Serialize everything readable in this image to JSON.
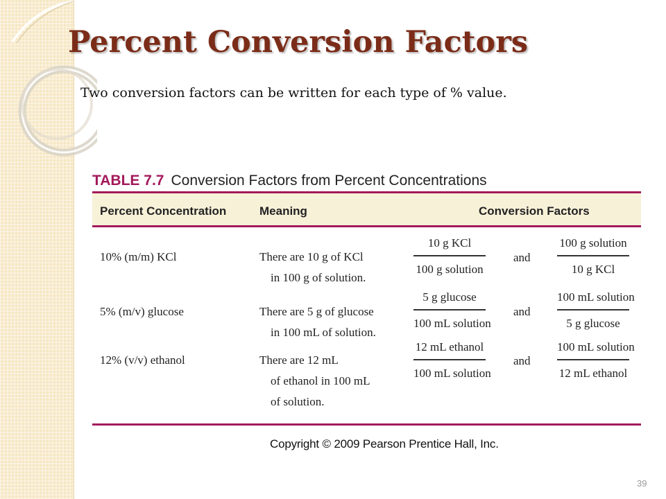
{
  "title": "Percent Conversion Factors",
  "subtitle": "Two conversion factors can be written for each type of % value.",
  "table": {
    "number": "TABLE 7.7",
    "caption": "Conversion Factors from Percent Concentrations",
    "headers": {
      "percent": "Percent Concentration",
      "meaning": "Meaning",
      "factors": "Conversion Factors"
    },
    "rows": [
      {
        "percent": "10% (m/m) KCl",
        "meaning": [
          "There are 10 g of KCl",
          "in 100 g of solution."
        ],
        "factor1": {
          "num": "10 g KCl",
          "den": "100 g solution"
        },
        "conj": "and",
        "factor2": {
          "num": "100 g solution",
          "den": "10 g KCl"
        }
      },
      {
        "percent": "5% (m/v) glucose",
        "meaning": [
          "There are 5 g of glucose",
          "in 100 mL of solution."
        ],
        "factor1": {
          "num": "5 g glucose",
          "den": "100 mL solution"
        },
        "conj": "and",
        "factor2": {
          "num": "100 mL solution",
          "den": "5 g glucose"
        }
      },
      {
        "percent": "12% (v/v) ethanol",
        "meaning": [
          "There are 12 mL",
          "of ethanol in 100 mL",
          "of solution."
        ],
        "factor1": {
          "num": "12 mL ethanol",
          "den": "100 mL solution"
        },
        "conj": "and",
        "factor2": {
          "num": "100 mL solution",
          "den": "12 mL ethanol"
        }
      }
    ]
  },
  "copyright": "Copyright © 2009 Pearson Prentice Hall, Inc.",
  "page_number": "39",
  "colors": {
    "title": "#7b2c18",
    "table_accent": "#a3195b",
    "header_band": "#f7f1d8",
    "side_strip": "#f6e6c2"
  }
}
